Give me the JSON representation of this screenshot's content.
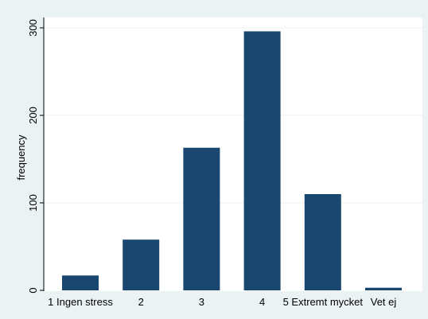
{
  "chart_data": {
    "type": "bar",
    "categories": [
      "1 Ingen stress",
      "2",
      "3",
      "4",
      "5 Extremt mycket",
      "Vet ej"
    ],
    "values": [
      17,
      58,
      163,
      296,
      110,
      3
    ],
    "title": "",
    "xlabel": "",
    "ylabel": "frequency",
    "ylim": [
      0,
      300
    ],
    "yticks": [
      0,
      100,
      200,
      300
    ],
    "grid": true,
    "legend": "none",
    "colors": {
      "bar": "#1a476f",
      "plot_background": "#ffffff",
      "outer_background": "#eaf2f3",
      "grid": "#eaf2f3",
      "axis": "#000000"
    }
  }
}
